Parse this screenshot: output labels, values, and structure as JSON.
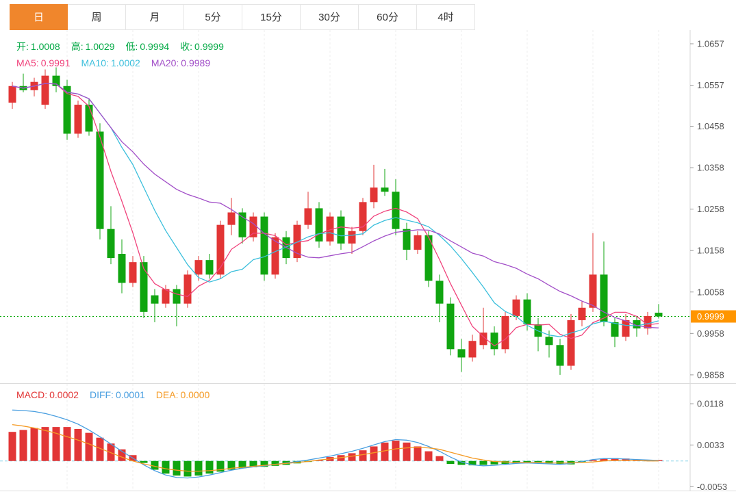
{
  "tabs": {
    "items": [
      "日",
      "周",
      "月",
      "5分",
      "15分",
      "30分",
      "60分",
      "4时"
    ],
    "active_index": 0
  },
  "price_pane": {
    "ohlc": [
      {
        "label": "开:",
        "value": "1.0008"
      },
      {
        "label": "高:",
        "value": "1.0029"
      },
      {
        "label": "低:",
        "value": "0.9994"
      },
      {
        "label": "收:",
        "value": "0.9999"
      }
    ],
    "ma": [
      {
        "label": "MA5:",
        "value": "0.9991"
      },
      {
        "label": "MA10:",
        "value": "1.0002"
      },
      {
        "label": "MA20:",
        "value": "0.9989"
      }
    ],
    "current_price_label": "0.9999"
  },
  "macd_pane": {
    "labels": [
      {
        "label": "MACD:",
        "value": "0.0002"
      },
      {
        "label": "DIFF:",
        "value": "0.0001"
      },
      {
        "label": "DEA:",
        "value": "0.0000"
      }
    ]
  },
  "colors": {
    "accent_tab": "#f0862c",
    "tab_text_active": "#ffffff",
    "up": "#e23535",
    "down": "#10a510",
    "ohlc_text": "#00a843",
    "ma5": "#f0437c",
    "ma10": "#3bbfdc",
    "ma20": "#a24fc8",
    "macd_label": "#e23535",
    "diff": "#4a9fe0",
    "dea": "#f59a23",
    "price_line": "#00a800",
    "price_tag_bg": "#ff9500",
    "price_tag_text": "#ffffff",
    "zero_line": "#86d3e8",
    "grid": "#ededed",
    "axis_border": "#d6d6d6",
    "axis_text": "#555555"
  },
  "chart_data": [
    {
      "type": "candlestick",
      "title": "",
      "xlabel": "",
      "ylabel": "",
      "legend": [
        "MA5",
        "MA10",
        "MA20"
      ],
      "y_ticks": [
        1.0657,
        1.0557,
        1.0458,
        1.0358,
        1.0258,
        1.0158,
        1.0058,
        0.9958,
        0.9858
      ],
      "ylim": [
        0.9838,
        1.069
      ],
      "current_price": 0.9999,
      "ma_periods": [
        5,
        10,
        20
      ],
      "candles": [
        [
          1.0515,
          1.0565,
          1.05,
          1.0555
        ],
        [
          1.0555,
          1.0585,
          1.054,
          1.0545
        ],
        [
          1.0545,
          1.0575,
          1.053,
          1.0565
        ],
        [
          1.051,
          1.0595,
          1.05,
          1.058
        ],
        [
          1.058,
          1.06,
          1.054,
          1.0555
        ],
        [
          1.0555,
          1.057,
          1.0425,
          1.044
        ],
        [
          1.044,
          1.052,
          1.043,
          1.051
        ],
        [
          1.051,
          1.0525,
          1.0435,
          1.0445
        ],
        [
          1.0445,
          1.0465,
          1.0185,
          1.021
        ],
        [
          1.021,
          1.0265,
          1.0125,
          1.014
        ],
        [
          1.015,
          1.0185,
          1.0055,
          1.008
        ],
        [
          1.008,
          1.0145,
          1.007,
          1.013
        ],
        [
          1.013,
          1.0145,
          0.9995,
          1.001
        ],
        [
          1.005,
          1.0065,
          0.9985,
          1.003
        ],
        [
          1.003,
          1.0075,
          1.002,
          1.0065
        ],
        [
          1.0065,
          1.0075,
          0.9975,
          1.003
        ],
        [
          1.003,
          1.011,
          1.002,
          1.01
        ],
        [
          1.01,
          1.0145,
          1.0085,
          1.0135
        ],
        [
          1.0135,
          1.015,
          1.009,
          1.01
        ],
        [
          1.01,
          1.023,
          1.009,
          1.022
        ],
        [
          1.022,
          1.0285,
          1.0195,
          1.025
        ],
        [
          1.025,
          1.026,
          1.0175,
          1.019
        ],
        [
          1.019,
          1.025,
          1.018,
          1.024
        ],
        [
          1.024,
          1.025,
          1.0085,
          1.01
        ],
        [
          1.01,
          1.02,
          1.009,
          1.019
        ],
        [
          1.019,
          1.0205,
          1.0125,
          1.014
        ],
        [
          1.014,
          1.023,
          1.013,
          1.022
        ],
        [
          1.022,
          1.03,
          1.021,
          1.026
        ],
        [
          1.026,
          1.0275,
          1.0165,
          1.018
        ],
        [
          1.018,
          1.025,
          1.017,
          1.024
        ],
        [
          1.024,
          1.0255,
          1.016,
          1.0175
        ],
        [
          1.0175,
          1.0215,
          1.015,
          1.0205
        ],
        [
          1.0205,
          1.0285,
          1.0195,
          1.0275
        ],
        [
          1.0275,
          1.0365,
          1.026,
          1.031
        ],
        [
          1.031,
          1.0355,
          1.029,
          1.03
        ],
        [
          1.03,
          1.033,
          1.0195,
          1.021
        ],
        [
          1.021,
          1.0225,
          1.0135,
          1.016
        ],
        [
          1.016,
          1.0205,
          1.015,
          1.0195
        ],
        [
          1.0195,
          1.0205,
          1.007,
          1.0085
        ],
        [
          1.0085,
          1.01,
          0.9985,
          1.003
        ],
        [
          1.003,
          1.0045,
          0.9905,
          0.992
        ],
        [
          0.992,
          0.9945,
          0.9865,
          0.99
        ],
        [
          0.99,
          0.9955,
          0.989,
          0.994
        ],
        [
          0.993,
          1.002,
          0.992,
          0.996
        ],
        [
          0.996,
          0.9975,
          0.9905,
          0.992
        ],
        [
          0.992,
          1.001,
          0.991,
          1.0
        ],
        [
          1.0,
          1.005,
          0.999,
          1.004
        ],
        [
          1.004,
          1.0055,
          0.9965,
          0.998
        ],
        [
          0.998,
          0.9995,
          0.9915,
          0.995
        ],
        [
          0.995,
          0.9965,
          0.99,
          0.993
        ],
        [
          0.993,
          0.9945,
          0.9858,
          0.988
        ],
        [
          0.988,
          1.0005,
          0.987,
          0.999
        ],
        [
          0.999,
          1.0035,
          0.9975,
          1.002
        ],
        [
          1.002,
          1.02,
          1.001,
          1.01
        ],
        [
          1.01,
          1.018,
          0.9975,
          0.9985
        ],
        [
          0.9985,
          0.9995,
          0.9925,
          0.995
        ],
        [
          0.995,
          1.0005,
          0.994,
          0.999
        ],
        [
          0.999,
          1.0,
          0.995,
          0.997
        ],
        [
          0.997,
          1.001,
          0.9955,
          1.0
        ],
        [
          1.0008,
          1.0029,
          0.9994,
          0.9999
        ]
      ]
    },
    {
      "type": "bar",
      "title": "MACD",
      "legend": [
        "MACD",
        "DIFF",
        "DEA"
      ],
      "y_ticks": [
        0.0118,
        0.0033,
        -0.0053
      ],
      "ylim": [
        -0.0061,
        0.0159
      ],
      "hist": [
        0.006,
        0.0064,
        0.0068,
        0.007,
        0.007,
        0.007,
        0.0066,
        0.0058,
        0.0048,
        0.0036,
        0.0024,
        0.0012,
        -0.0004,
        -0.0018,
        -0.0026,
        -0.003,
        -0.0032,
        -0.003,
        -0.0026,
        -0.0022,
        -0.0018,
        -0.0015,
        -0.0013,
        -0.0012,
        -0.001,
        -0.0008,
        -0.0005,
        -0.0002,
        0.0002,
        0.0008,
        0.0012,
        0.0016,
        0.0022,
        0.003,
        0.0038,
        0.0042,
        0.0038,
        0.003,
        0.002,
        0.001,
        -0.0006,
        -0.0008,
        -0.0009,
        -0.0008,
        -0.0007,
        -0.0006,
        -0.0005,
        -0.0003,
        -0.0003,
        -0.0005,
        -0.0006,
        -0.0007,
        -0.0003,
        0.0002,
        0.0005,
        0.0006,
        0.0005,
        0.0003,
        0.0002,
        0.0002
      ],
      "diff": [
        0.0105,
        0.0104,
        0.0102,
        0.0098,
        0.0092,
        0.0085,
        0.0076,
        0.0064,
        0.005,
        0.0035,
        0.002,
        0.0006,
        -0.0008,
        -0.002,
        -0.0029,
        -0.0034,
        -0.0035,
        -0.0033,
        -0.0029,
        -0.0024,
        -0.0019,
        -0.0015,
        -0.0012,
        -0.001,
        -0.0007,
        -0.0004,
        -0.0001,
        0.0002,
        0.0006,
        0.001,
        0.0015,
        0.002,
        0.0026,
        0.0033,
        0.004,
        0.0044,
        0.0043,
        0.0038,
        0.003,
        0.002,
        0.0008,
        -0.0002,
        -0.0008,
        -0.001,
        -0.0009,
        -0.0007,
        -0.0005,
        -0.0004,
        -0.0005,
        -0.0006,
        -0.0007,
        -0.0005,
        -0.0001,
        0.0003,
        0.0005,
        0.0005,
        0.0004,
        0.0003,
        0.0002,
        0.0001
      ],
      "dea": [
        0.0075,
        0.0072,
        0.0068,
        0.0063,
        0.0057,
        0.005,
        0.0043,
        0.0035,
        0.0026,
        0.0017,
        0.0008,
        0.0,
        -0.0006,
        -0.0011,
        -0.0016,
        -0.0019,
        -0.0021,
        -0.0021,
        -0.002,
        -0.0018,
        -0.0015,
        -0.0013,
        -0.0011,
        -0.0009,
        -0.0007,
        -0.0005,
        -0.0003,
        -0.0001,
        0.0002,
        0.0004,
        0.0007,
        0.001,
        0.0013,
        0.0017,
        0.0021,
        0.0025,
        0.0027,
        0.0028,
        0.0027,
        0.0024,
        0.0018,
        0.0012,
        0.0006,
        0.0002,
        -0.0001,
        -0.0002,
        -0.0003,
        -0.0003,
        -0.0003,
        -0.0004,
        -0.0004,
        -0.0004,
        -0.0003,
        -0.0002,
        0.0,
        0.0001,
        0.0001,
        0.0001,
        0.0,
        0.0
      ]
    }
  ]
}
